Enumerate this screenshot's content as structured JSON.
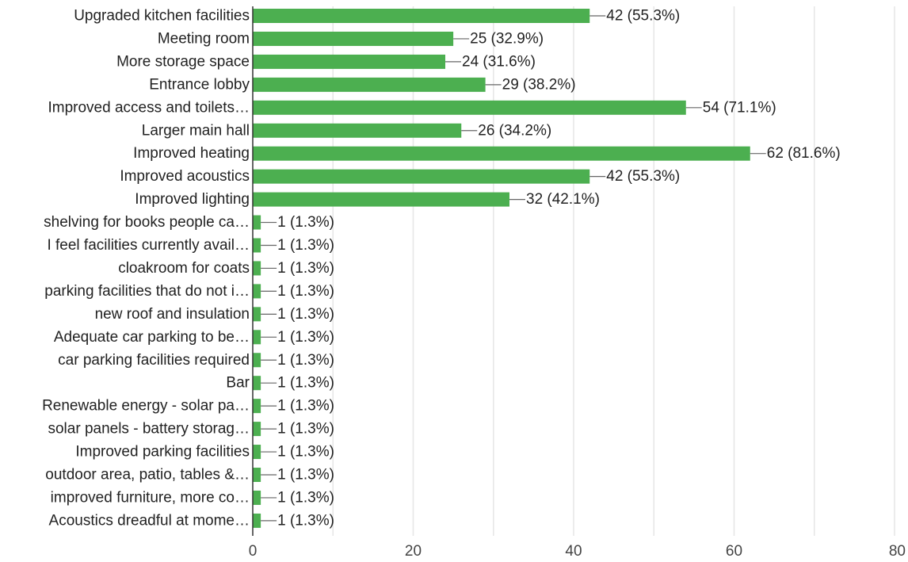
{
  "chart_data": {
    "type": "bar",
    "orientation": "horizontal",
    "categories": [
      "Upgraded kitchen facilities",
      "Meeting room",
      "More storage space",
      "Entrance lobby",
      "Improved access and toilets…",
      "Larger main hall",
      "Improved heating",
      "Improved acoustics",
      "Improved lighting",
      "shelving for books people ca…",
      "I feel facilities currently avail…",
      "cloakroom for coats",
      "parking facilities that do not i…",
      "new roof and insulation",
      "Adequate car parking to be…",
      "car parking facilities required",
      "Bar",
      "Renewable energy - solar pa…",
      "solar panels - battery storag…",
      "Improved parking facilities",
      "outdoor area, patio, tables &…",
      "improved furniture, more co…",
      "Acoustics dreadful at mome…"
    ],
    "values": [
      42,
      25,
      24,
      29,
      54,
      26,
      62,
      42,
      32,
      1,
      1,
      1,
      1,
      1,
      1,
      1,
      1,
      1,
      1,
      1,
      1,
      1,
      1
    ],
    "data_labels": [
      "42 (55.3%)",
      "25 (32.9%)",
      "24 (31.6%)",
      "29 (38.2%)",
      "54 (71.1%)",
      "26 (34.2%)",
      "62 (81.6%)",
      "42 (55.3%)",
      "32 (42.1%)",
      "1 (1.3%)",
      "1 (1.3%)",
      "1 (1.3%)",
      "1 (1.3%)",
      "1 (1.3%)",
      "1 (1.3%)",
      "1 (1.3%)",
      "1 (1.3%)",
      "1 (1.3%)",
      "1 (1.3%)",
      "1 (1.3%)",
      "1 (1.3%)",
      "1 (1.3%)",
      "1 (1.3%)"
    ],
    "xlim": [
      0,
      80
    ],
    "xticks": [
      0,
      20,
      40,
      60,
      80
    ],
    "xtick_labels": [
      "0",
      "20",
      "40",
      "60",
      "80"
    ],
    "grid": true,
    "legend": "none",
    "bar_color": "#4caf50",
    "title": "",
    "xlabel": "",
    "ylabel": ""
  }
}
